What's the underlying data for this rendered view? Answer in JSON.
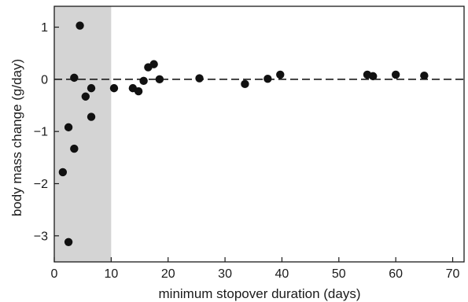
{
  "chart_data": {
    "type": "scatter",
    "title": "",
    "xlabel": "minimum stopover duration (days)",
    "ylabel": "body mass change (g/day)",
    "xlim": [
      0,
      72
    ],
    "ylim": [
      -3.5,
      1.4
    ],
    "xticks": [
      0,
      10,
      20,
      30,
      40,
      50,
      60,
      70
    ],
    "yticks": [
      -3,
      -2,
      -1,
      0,
      1
    ],
    "x_tick_labels": [
      "0",
      "10",
      "20",
      "30",
      "40",
      "50",
      "60",
      "70"
    ],
    "y_tick_labels": [
      "−3",
      "−2",
      "−1",
      "0",
      "1"
    ],
    "grid": false,
    "shaded_region": {
      "x": [
        0,
        10
      ],
      "color": "#d4d4d4"
    },
    "reference_line": {
      "y": 0,
      "style": "dashed",
      "color": "#1a1a1a"
    },
    "marker_color": "#111111",
    "points": [
      {
        "x": 1.5,
        "y": -1.78
      },
      {
        "x": 2.5,
        "y": -3.12
      },
      {
        "x": 2.5,
        "y": -0.92
      },
      {
        "x": 3.5,
        "y": -1.33
      },
      {
        "x": 3.5,
        "y": 0.03
      },
      {
        "x": 4.5,
        "y": 1.03
      },
      {
        "x": 5.5,
        "y": -0.33
      },
      {
        "x": 6.5,
        "y": -0.72
      },
      {
        "x": 6.5,
        "y": -0.17
      },
      {
        "x": 10.5,
        "y": -0.17
      },
      {
        "x": 13.8,
        "y": -0.17
      },
      {
        "x": 14.8,
        "y": -0.23
      },
      {
        "x": 15.7,
        "y": -0.03
      },
      {
        "x": 16.5,
        "y": 0.23
      },
      {
        "x": 17.5,
        "y": 0.29
      },
      {
        "x": 18.5,
        "y": 0.0
      },
      {
        "x": 25.5,
        "y": 0.02
      },
      {
        "x": 33.5,
        "y": -0.09
      },
      {
        "x": 37.5,
        "y": 0.01
      },
      {
        "x": 39.7,
        "y": 0.09
      },
      {
        "x": 55.0,
        "y": 0.09
      },
      {
        "x": 56.0,
        "y": 0.06
      },
      {
        "x": 60.0,
        "y": 0.09
      },
      {
        "x": 65.0,
        "y": 0.07
      }
    ]
  }
}
